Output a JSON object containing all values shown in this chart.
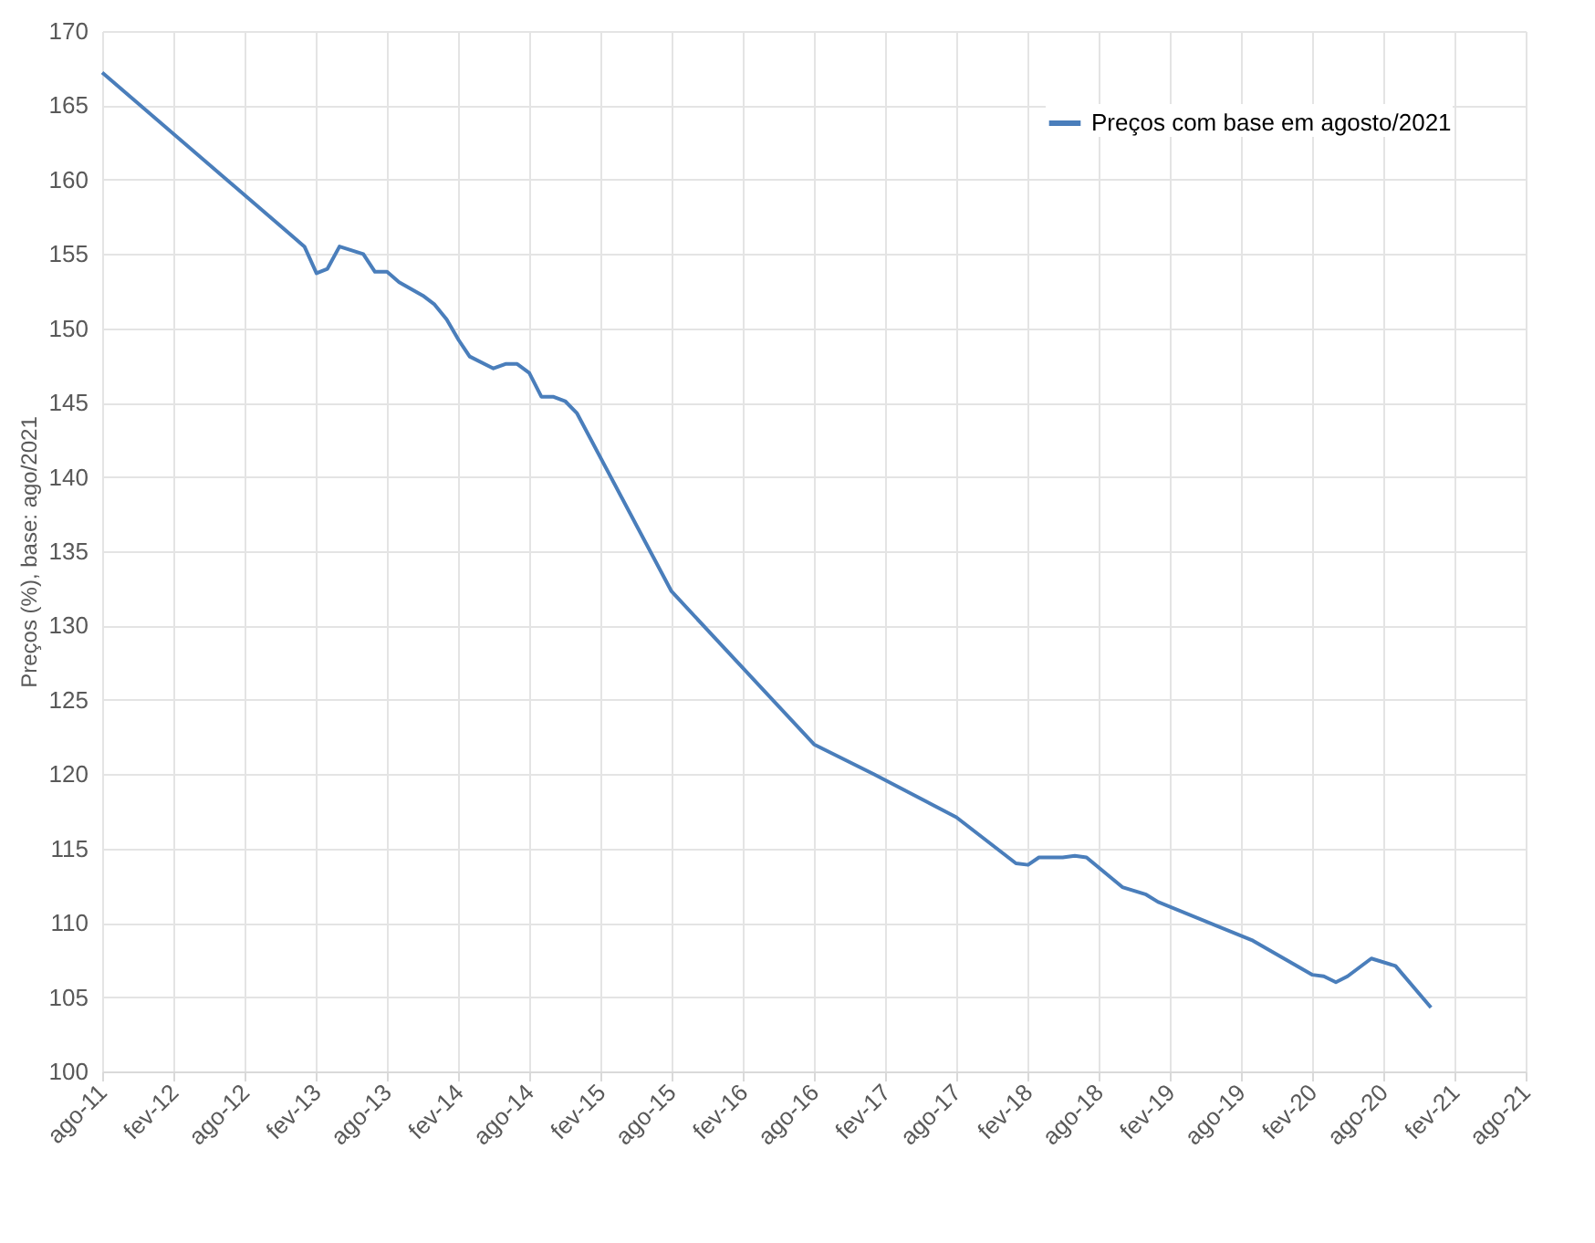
{
  "chart_data": {
    "type": "line",
    "ylabel": "Preços (%), base: ago/2021",
    "x": [
      "2011-08",
      "2013-01",
      "2013-02",
      "2013-03",
      "2013-04",
      "2013-06",
      "2013-07",
      "2013-08",
      "2013-09",
      "2013-11",
      "2013-12",
      "2014-01",
      "2014-02",
      "2014-03",
      "2014-05",
      "2014-06",
      "2014-07",
      "2014-08",
      "2014-09",
      "2014-10",
      "2014-11",
      "2014-12",
      "2015-08",
      "2016-08",
      "2017-01",
      "2017-08",
      "2018-01",
      "2018-02",
      "2018-03",
      "2018-05",
      "2018-06",
      "2018-07",
      "2018-10",
      "2018-12",
      "2019-01",
      "2019-09",
      "2020-02",
      "2020-03",
      "2020-04",
      "2020-05",
      "2020-07",
      "2020-09",
      "2020-12"
    ],
    "series": [
      {
        "name": "Preços com base em agosto/2021",
        "color": "#4a7ebb",
        "values": [
          167.2,
          155.5,
          153.7,
          154.0,
          155.5,
          155.0,
          153.8,
          153.8,
          153.1,
          152.2,
          151.6,
          150.6,
          149.2,
          148.1,
          147.3,
          147.6,
          147.6,
          147.0,
          145.4,
          145.4,
          145.1,
          144.3,
          132.3,
          122.0,
          120.0,
          117.1,
          114.0,
          113.9,
          114.4,
          114.4,
          114.5,
          114.4,
          112.4,
          111.9,
          111.4,
          108.8,
          106.5,
          106.4,
          106.0,
          106.4,
          107.6,
          107.1,
          104.3
        ]
      }
    ],
    "xlim": [
      "2011-08",
      "2021-08"
    ],
    "xticks": [
      {
        "value": "2011-08",
        "label": "ago-11"
      },
      {
        "value": "2012-02",
        "label": "fev-12"
      },
      {
        "value": "2012-08",
        "label": "ago-12"
      },
      {
        "value": "2013-02",
        "label": "fev-13"
      },
      {
        "value": "2013-08",
        "label": "ago-13"
      },
      {
        "value": "2014-02",
        "label": "fev-14"
      },
      {
        "value": "2014-08",
        "label": "ago-14"
      },
      {
        "value": "2015-02",
        "label": "fev-15"
      },
      {
        "value": "2015-08",
        "label": "ago-15"
      },
      {
        "value": "2016-02",
        "label": "fev-16"
      },
      {
        "value": "2016-08",
        "label": "ago-16"
      },
      {
        "value": "2017-02",
        "label": "fev-17"
      },
      {
        "value": "2017-08",
        "label": "ago-17"
      },
      {
        "value": "2018-02",
        "label": "fev-18"
      },
      {
        "value": "2018-08",
        "label": "ago-18"
      },
      {
        "value": "2019-02",
        "label": "fev-19"
      },
      {
        "value": "2019-08",
        "label": "ago-19"
      },
      {
        "value": "2020-02",
        "label": "fev-20"
      },
      {
        "value": "2020-08",
        "label": "ago-20"
      },
      {
        "value": "2021-02",
        "label": "fev-21"
      },
      {
        "value": "2021-08",
        "label": "ago-21"
      }
    ],
    "ylim": [
      100,
      170
    ],
    "yticks": [
      100,
      105,
      110,
      115,
      120,
      125,
      130,
      135,
      140,
      145,
      150,
      155,
      160,
      165,
      170
    ],
    "grid": true,
    "legend": "top right"
  }
}
